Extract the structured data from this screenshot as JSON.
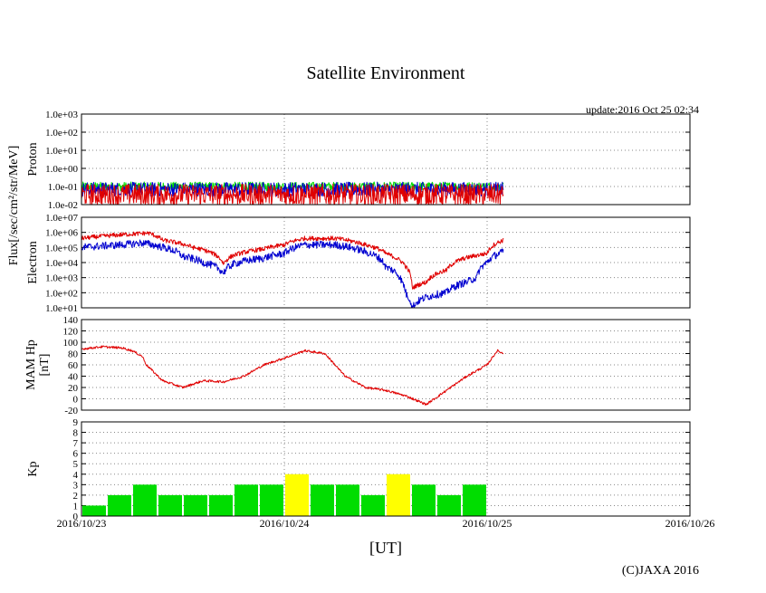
{
  "title": "Satellite Environment",
  "update_text": "update:2016 Oct 25 02:34",
  "xlabel": "[UT]",
  "copyright": "(C)JAXA 2016",
  "flux_axis_label": "Flux[/sec/cm²/str/MeV]",
  "x_ticks": [
    "2016/10/23",
    "2016/10/24",
    "2016/10/25",
    "2016/10/26"
  ],
  "colors": {
    "red": "#e00000",
    "blue": "#0000d0",
    "green": "#00dd00",
    "yellow": "#ffff00",
    "grid": "#888888"
  },
  "chart_data": [
    {
      "type": "line",
      "ylabel": "Proton",
      "yscale": "log",
      "ylim": [
        0.01,
        1000
      ],
      "yticks": [
        "1.0e-02",
        "1.0e-01",
        "1.0e+00",
        "1.0e+01",
        "1.0e+02",
        "1.0e+03"
      ],
      "x_unit": "days since 2016/10/23 00:00 UT",
      "xlim": [
        0,
        3
      ],
      "series": [
        {
          "color": "green",
          "x": [
            0,
            0.5,
            1.0,
            1.5,
            2.08
          ],
          "y": [
            0.1,
            0.1,
            0.1,
            0.1,
            0.1
          ],
          "noise": 0.25
        },
        {
          "color": "blue",
          "x": [
            0,
            0.5,
            1.0,
            1.5,
            2.08
          ],
          "y": [
            0.07,
            0.07,
            0.07,
            0.07,
            0.07
          ],
          "noise": 0.4
        },
        {
          "color": "red",
          "x": [
            0,
            0.5,
            1.0,
            1.5,
            2.08
          ],
          "y": [
            0.035,
            0.035,
            0.035,
            0.035,
            0.035
          ],
          "noise": 0.6
        }
      ]
    },
    {
      "type": "line",
      "ylabel": "Electron",
      "yscale": "log",
      "ylim": [
        10,
        10000000
      ],
      "yticks": [
        "1.0e+01",
        "1.0e+02",
        "1.0e+03",
        "1.0e+04",
        "1.0e+05",
        "1.0e+06",
        "1.0e+07"
      ],
      "x_unit": "days since 2016/10/23 00:00 UT",
      "xlim": [
        0,
        3
      ],
      "series": [
        {
          "color": "red",
          "x": [
            0,
            0.2,
            0.33,
            0.4,
            0.55,
            0.7,
            0.75,
            0.9,
            1.0,
            1.1,
            1.25,
            1.4,
            1.5,
            1.55,
            1.6,
            1.63,
            1.7,
            1.8,
            1.95,
            2.0,
            2.08
          ],
          "y": [
            400000,
            700000,
            900000,
            300000,
            100000,
            8000,
            30000,
            80000,
            150000,
            400000,
            400000,
            150000,
            40000,
            20000,
            5000,
            200,
            500,
            3000,
            30000,
            40000,
            300000
          ],
          "noise": 0.15
        },
        {
          "color": "blue",
          "x": [
            0,
            0.2,
            0.3,
            0.38,
            0.5,
            0.6,
            0.7,
            0.75,
            0.9,
            1.0,
            1.1,
            1.25,
            1.4,
            1.5,
            1.58,
            1.6,
            1.63,
            1.7,
            1.8,
            1.9,
            1.95,
            2.0,
            2.08
          ],
          "y": [
            100000,
            150000,
            200000,
            120000,
            25000,
            10000,
            2000,
            8000,
            20000,
            40000,
            150000,
            150000,
            50000,
            5000,
            500,
            80,
            10,
            50,
            100,
            500,
            1000,
            10000,
            50000
          ],
          "noise": 0.25
        }
      ]
    },
    {
      "type": "line",
      "ylabel": "MAM Hp [nT]",
      "yscale": "linear",
      "ylim": [
        -20,
        140
      ],
      "yticks": [
        "-20",
        "0",
        "20",
        "40",
        "60",
        "80",
        "100",
        "120",
        "140"
      ],
      "x_unit": "days since 2016/10/23 00:00 UT",
      "xlim": [
        0,
        3
      ],
      "series": [
        {
          "color": "red",
          "x": [
            0,
            0.1,
            0.2,
            0.25,
            0.3,
            0.32,
            0.4,
            0.5,
            0.6,
            0.7,
            0.8,
            0.9,
            1.0,
            1.1,
            1.2,
            1.25,
            1.3,
            1.4,
            1.5,
            1.6,
            1.7,
            1.8,
            1.9,
            2.0,
            2.05,
            2.08
          ],
          "y": [
            88,
            92,
            90,
            85,
            75,
            60,
            32,
            20,
            32,
            30,
            40,
            60,
            72,
            85,
            80,
            60,
            40,
            20,
            15,
            5,
            -10,
            15,
            40,
            60,
            85,
            80
          ],
          "noise": 2
        }
      ]
    },
    {
      "type": "bar",
      "ylabel": "Kp",
      "ylim": [
        0,
        9
      ],
      "yticks": [
        "0",
        "1",
        "2",
        "3",
        "4",
        "5",
        "6",
        "7",
        "8",
        "9"
      ],
      "bar_width_days": 0.125,
      "x_start_days": 0,
      "values": [
        1,
        2,
        3,
        2,
        2,
        2,
        3,
        3,
        4,
        3,
        3,
        2,
        4,
        3,
        2,
        3
      ],
      "colors": [
        "green",
        "green",
        "green",
        "green",
        "green",
        "green",
        "green",
        "green",
        "yellow",
        "green",
        "green",
        "green",
        "yellow",
        "green",
        "green",
        "green"
      ]
    }
  ]
}
